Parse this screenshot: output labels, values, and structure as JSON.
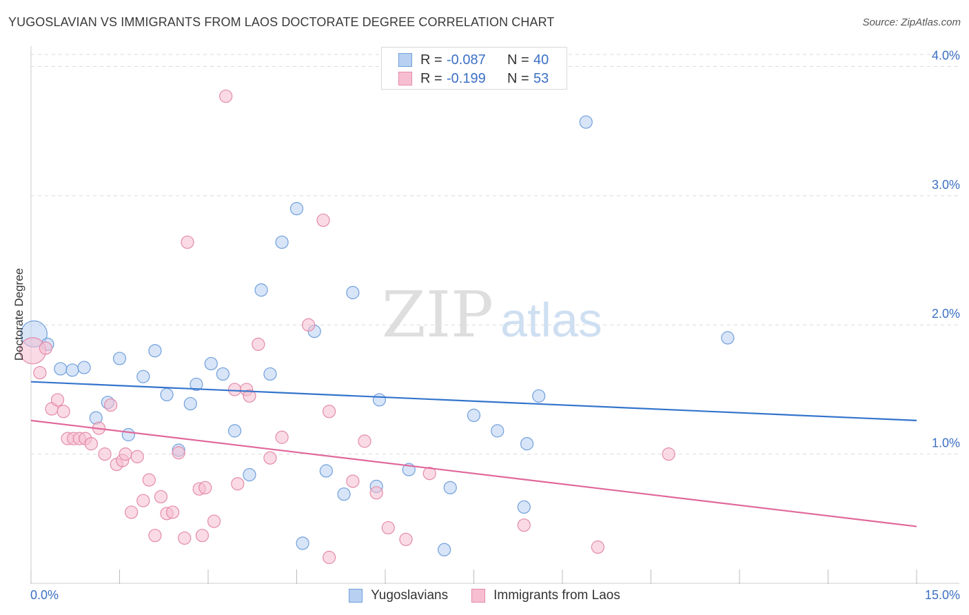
{
  "header": {
    "title": "YUGOSLAVIAN VS IMMIGRANTS FROM LAOS DOCTORATE DEGREE CORRELATION CHART",
    "source": "Source: ZipAtlas.com"
  },
  "watermark": {
    "zip": "ZIP",
    "atlas": "atlas"
  },
  "legend": {
    "rows": [
      {
        "r_label": "R =",
        "r_value": "-0.087",
        "n_label": "N =",
        "n_value": "40"
      },
      {
        "r_label": "R =",
        "r_value": "-0.199",
        "n_label": "N =",
        "n_value": "53"
      }
    ]
  },
  "colors": {
    "yugoslavians_fill": "#b8d0f2",
    "yugoslavians_stroke": "#6f9fdc",
    "yugoslavians_line": "#3374cc",
    "laos_fill": "#f6bed0",
    "laos_stroke": "#e48aa8",
    "laos_line": "#e0679a",
    "grid": "#d9d9d9",
    "tick_label": "#3b6fc4"
  },
  "chart_data": {
    "type": "scatter",
    "title": "YUGOSLAVIAN VS IMMIGRANTS FROM LAOS DOCTORATE DEGREE CORRELATION CHART",
    "xlabel": "",
    "ylabel": "Doctorate Degree",
    "xlim": [
      0,
      15
    ],
    "ylim": [
      0,
      4.2
    ],
    "x_tick_labels": [
      "0.0%",
      "15.0%"
    ],
    "y_ticks": [
      1,
      2,
      3,
      4
    ],
    "y_tick_labels": [
      "1.0%",
      "2.0%",
      "3.0%",
      "4.0%"
    ],
    "grid": true,
    "legend_position": "top-center",
    "series": [
      {
        "name": "Yugoslavians",
        "trend": {
          "x": [
            0,
            15
          ],
          "y": [
            1.56,
            1.26
          ]
        },
        "points": [
          {
            "x": 0.05,
            "y": 1.93,
            "big": true
          },
          {
            "x": 0.28,
            "y": 1.85
          },
          {
            "x": 0.5,
            "y": 1.66
          },
          {
            "x": 0.7,
            "y": 1.65
          },
          {
            "x": 0.9,
            "y": 1.67
          },
          {
            "x": 1.1,
            "y": 1.28
          },
          {
            "x": 1.3,
            "y": 1.4
          },
          {
            "x": 1.5,
            "y": 1.74
          },
          {
            "x": 1.65,
            "y": 1.15
          },
          {
            "x": 1.9,
            "y": 1.6
          },
          {
            "x": 2.1,
            "y": 1.8
          },
          {
            "x": 2.3,
            "y": 1.46
          },
          {
            "x": 2.5,
            "y": 1.03
          },
          {
            "x": 2.7,
            "y": 1.39
          },
          {
            "x": 2.8,
            "y": 1.54
          },
          {
            "x": 3.05,
            "y": 1.7
          },
          {
            "x": 3.25,
            "y": 1.62
          },
          {
            "x": 3.45,
            "y": 1.18
          },
          {
            "x": 3.7,
            "y": 0.84
          },
          {
            "x": 3.9,
            "y": 2.27
          },
          {
            "x": 4.05,
            "y": 1.62
          },
          {
            "x": 4.25,
            "y": 2.64
          },
          {
            "x": 4.5,
            "y": 2.9
          },
          {
            "x": 4.6,
            "y": 0.31
          },
          {
            "x": 4.8,
            "y": 1.95
          },
          {
            "x": 5.0,
            "y": 0.87
          },
          {
            "x": 5.3,
            "y": 0.69
          },
          {
            "x": 5.45,
            "y": 2.25
          },
          {
            "x": 5.85,
            "y": 0.75
          },
          {
            "x": 5.9,
            "y": 1.42
          },
          {
            "x": 6.4,
            "y": 0.88
          },
          {
            "x": 7.0,
            "y": 0.26
          },
          {
            "x": 7.1,
            "y": 0.74
          },
          {
            "x": 7.5,
            "y": 1.3
          },
          {
            "x": 7.9,
            "y": 1.18
          },
          {
            "x": 8.35,
            "y": 0.59
          },
          {
            "x": 8.4,
            "y": 1.08
          },
          {
            "x": 8.6,
            "y": 1.45
          },
          {
            "x": 9.4,
            "y": 3.57
          },
          {
            "x": 11.8,
            "y": 1.9
          }
        ]
      },
      {
        "name": "Immigrants from Laos",
        "trend": {
          "x": [
            0,
            15
          ],
          "y": [
            1.26,
            0.44
          ]
        },
        "points": [
          {
            "x": 0.03,
            "y": 1.8,
            "big": true
          },
          {
            "x": 0.15,
            "y": 1.63
          },
          {
            "x": 0.25,
            "y": 1.82
          },
          {
            "x": 0.35,
            "y": 1.35
          },
          {
            "x": 0.45,
            "y": 1.42
          },
          {
            "x": 0.55,
            "y": 1.33
          },
          {
            "x": 0.62,
            "y": 1.12
          },
          {
            "x": 0.72,
            "y": 1.12
          },
          {
            "x": 0.82,
            "y": 1.12
          },
          {
            "x": 0.92,
            "y": 1.12
          },
          {
            "x": 1.02,
            "y": 1.08
          },
          {
            "x": 1.15,
            "y": 1.2
          },
          {
            "x": 1.25,
            "y": 1.0
          },
          {
            "x": 1.35,
            "y": 1.38
          },
          {
            "x": 1.45,
            "y": 0.92
          },
          {
            "x": 1.55,
            "y": 0.95
          },
          {
            "x": 1.6,
            "y": 1.0
          },
          {
            "x": 1.7,
            "y": 0.55
          },
          {
            "x": 1.8,
            "y": 0.98
          },
          {
            "x": 1.9,
            "y": 0.64
          },
          {
            "x": 2.0,
            "y": 0.8
          },
          {
            "x": 2.1,
            "y": 0.37
          },
          {
            "x": 2.2,
            "y": 0.67
          },
          {
            "x": 2.3,
            "y": 0.54
          },
          {
            "x": 2.4,
            "y": 0.55
          },
          {
            "x": 2.5,
            "y": 1.01
          },
          {
            "x": 2.6,
            "y": 0.35
          },
          {
            "x": 2.65,
            "y": 2.64
          },
          {
            "x": 2.85,
            "y": 0.73
          },
          {
            "x": 2.9,
            "y": 0.37
          },
          {
            "x": 2.95,
            "y": 0.74
          },
          {
            "x": 3.1,
            "y": 0.48
          },
          {
            "x": 3.3,
            "y": 3.77
          },
          {
            "x": 3.45,
            "y": 1.5
          },
          {
            "x": 3.5,
            "y": 0.77
          },
          {
            "x": 3.65,
            "y": 1.5
          },
          {
            "x": 3.7,
            "y": 1.45
          },
          {
            "x": 3.85,
            "y": 1.85
          },
          {
            "x": 4.05,
            "y": 0.97
          },
          {
            "x": 4.25,
            "y": 1.13
          },
          {
            "x": 4.7,
            "y": 2.0
          },
          {
            "x": 4.95,
            "y": 2.81
          },
          {
            "x": 5.05,
            "y": 0.2
          },
          {
            "x": 5.05,
            "y": 1.33
          },
          {
            "x": 5.45,
            "y": 0.79
          },
          {
            "x": 5.65,
            "y": 1.1
          },
          {
            "x": 5.85,
            "y": 0.7
          },
          {
            "x": 6.05,
            "y": 0.43
          },
          {
            "x": 6.35,
            "y": 0.34
          },
          {
            "x": 6.75,
            "y": 0.85
          },
          {
            "x": 8.35,
            "y": 0.45
          },
          {
            "x": 9.6,
            "y": 0.28
          },
          {
            "x": 10.8,
            "y": 1.0
          }
        ]
      }
    ]
  }
}
